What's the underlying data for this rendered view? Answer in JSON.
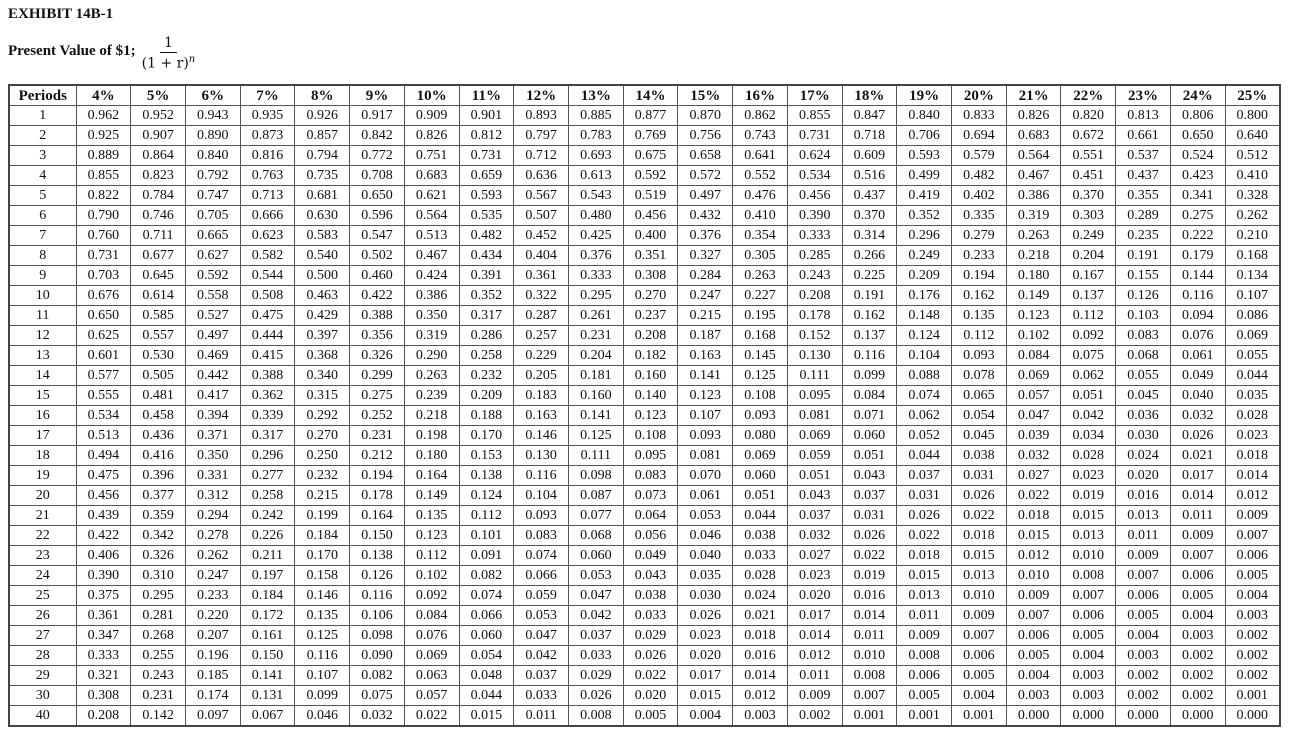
{
  "title": "EXHIBIT 14B-1",
  "subtitle": "Present Value of $1;",
  "formula": {
    "numerator": "1",
    "denominator": "(1 + r)",
    "exponent": "n"
  },
  "table": {
    "headers": [
      "Periods",
      "4%",
      "5%",
      "6%",
      "7%",
      "8%",
      "9%",
      "10%",
      "11%",
      "12%",
      "13%",
      "14%",
      "15%",
      "16%",
      "17%",
      "18%",
      "19%",
      "20%",
      "21%",
      "22%",
      "23%",
      "24%",
      "25%"
    ],
    "rows": [
      [
        "1",
        "0.962",
        "0.952",
        "0.943",
        "0.935",
        "0.926",
        "0.917",
        "0.909",
        "0.901",
        "0.893",
        "0.885",
        "0.877",
        "0.870",
        "0.862",
        "0.855",
        "0.847",
        "0.840",
        "0.833",
        "0.826",
        "0.820",
        "0.813",
        "0.806",
        "0.800"
      ],
      [
        "2",
        "0.925",
        "0.907",
        "0.890",
        "0.873",
        "0.857",
        "0.842",
        "0.826",
        "0.812",
        "0.797",
        "0.783",
        "0.769",
        "0.756",
        "0.743",
        "0.731",
        "0.718",
        "0.706",
        "0.694",
        "0.683",
        "0.672",
        "0.661",
        "0.650",
        "0.640"
      ],
      [
        "3",
        "0.889",
        "0.864",
        "0.840",
        "0.816",
        "0.794",
        "0.772",
        "0.751",
        "0.731",
        "0.712",
        "0.693",
        "0.675",
        "0.658",
        "0.641",
        "0.624",
        "0.609",
        "0.593",
        "0.579",
        "0.564",
        "0.551",
        "0.537",
        "0.524",
        "0.512"
      ],
      [
        "4",
        "0.855",
        "0.823",
        "0.792",
        "0.763",
        "0.735",
        "0.708",
        "0.683",
        "0.659",
        "0.636",
        "0.613",
        "0.592",
        "0.572",
        "0.552",
        "0.534",
        "0.516",
        "0.499",
        "0.482",
        "0.467",
        "0.451",
        "0.437",
        "0.423",
        "0.410"
      ],
      [
        "5",
        "0.822",
        "0.784",
        "0.747",
        "0.713",
        "0.681",
        "0.650",
        "0.621",
        "0.593",
        "0.567",
        "0.543",
        "0.519",
        "0.497",
        "0.476",
        "0.456",
        "0.437",
        "0.419",
        "0.402",
        "0.386",
        "0.370",
        "0.355",
        "0.341",
        "0.328"
      ],
      [
        "6",
        "0.790",
        "0.746",
        "0.705",
        "0.666",
        "0.630",
        "0.596",
        "0.564",
        "0.535",
        "0.507",
        "0.480",
        "0.456",
        "0.432",
        "0.410",
        "0.390",
        "0.370",
        "0.352",
        "0.335",
        "0.319",
        "0.303",
        "0.289",
        "0.275",
        "0.262"
      ],
      [
        "7",
        "0.760",
        "0.711",
        "0.665",
        "0.623",
        "0.583",
        "0.547",
        "0.513",
        "0.482",
        "0.452",
        "0.425",
        "0.400",
        "0.376",
        "0.354",
        "0.333",
        "0.314",
        "0.296",
        "0.279",
        "0.263",
        "0.249",
        "0.235",
        "0.222",
        "0.210"
      ],
      [
        "8",
        "0.731",
        "0.677",
        "0.627",
        "0.582",
        "0.540",
        "0.502",
        "0.467",
        "0.434",
        "0.404",
        "0.376",
        "0.351",
        "0.327",
        "0.305",
        "0.285",
        "0.266",
        "0.249",
        "0.233",
        "0.218",
        "0.204",
        "0.191",
        "0.179",
        "0.168"
      ],
      [
        "9",
        "0.703",
        "0.645",
        "0.592",
        "0.544",
        "0.500",
        "0.460",
        "0.424",
        "0.391",
        "0.361",
        "0.333",
        "0.308",
        "0.284",
        "0.263",
        "0.243",
        "0.225",
        "0.209",
        "0.194",
        "0.180",
        "0.167",
        "0.155",
        "0.144",
        "0.134"
      ],
      [
        "10",
        "0.676",
        "0.614",
        "0.558",
        "0.508",
        "0.463",
        "0.422",
        "0.386",
        "0.352",
        "0.322",
        "0.295",
        "0.270",
        "0.247",
        "0.227",
        "0.208",
        "0.191",
        "0.176",
        "0.162",
        "0.149",
        "0.137",
        "0.126",
        "0.116",
        "0.107"
      ],
      [
        "11",
        "0.650",
        "0.585",
        "0.527",
        "0.475",
        "0.429",
        "0.388",
        "0.350",
        "0.317",
        "0.287",
        "0.261",
        "0.237",
        "0.215",
        "0.195",
        "0.178",
        "0.162",
        "0.148",
        "0.135",
        "0.123",
        "0.112",
        "0.103",
        "0.094",
        "0.086"
      ],
      [
        "12",
        "0.625",
        "0.557",
        "0.497",
        "0.444",
        "0.397",
        "0.356",
        "0.319",
        "0.286",
        "0.257",
        "0.231",
        "0.208",
        "0.187",
        "0.168",
        "0.152",
        "0.137",
        "0.124",
        "0.112",
        "0.102",
        "0.092",
        "0.083",
        "0.076",
        "0.069"
      ],
      [
        "13",
        "0.601",
        "0.530",
        "0.469",
        "0.415",
        "0.368",
        "0.326",
        "0.290",
        "0.258",
        "0.229",
        "0.204",
        "0.182",
        "0.163",
        "0.145",
        "0.130",
        "0.116",
        "0.104",
        "0.093",
        "0.084",
        "0.075",
        "0.068",
        "0.061",
        "0.055"
      ],
      [
        "14",
        "0.577",
        "0.505",
        "0.442",
        "0.388",
        "0.340",
        "0.299",
        "0.263",
        "0.232",
        "0.205",
        "0.181",
        "0.160",
        "0.141",
        "0.125",
        "0.111",
        "0.099",
        "0.088",
        "0.078",
        "0.069",
        "0.062",
        "0.055",
        "0.049",
        "0.044"
      ],
      [
        "15",
        "0.555",
        "0.481",
        "0.417",
        "0.362",
        "0.315",
        "0.275",
        "0.239",
        "0.209",
        "0.183",
        "0.160",
        "0.140",
        "0.123",
        "0.108",
        "0.095",
        "0.084",
        "0.074",
        "0.065",
        "0.057",
        "0.051",
        "0.045",
        "0.040",
        "0.035"
      ],
      [
        "16",
        "0.534",
        "0.458",
        "0.394",
        "0.339",
        "0.292",
        "0.252",
        "0.218",
        "0.188",
        "0.163",
        "0.141",
        "0.123",
        "0.107",
        "0.093",
        "0.081",
        "0.071",
        "0.062",
        "0.054",
        "0.047",
        "0.042",
        "0.036",
        "0.032",
        "0.028"
      ],
      [
        "17",
        "0.513",
        "0.436",
        "0.371",
        "0.317",
        "0.270",
        "0.231",
        "0.198",
        "0.170",
        "0.146",
        "0.125",
        "0.108",
        "0.093",
        "0.080",
        "0.069",
        "0.060",
        "0.052",
        "0.045",
        "0.039",
        "0.034",
        "0.030",
        "0.026",
        "0.023"
      ],
      [
        "18",
        "0.494",
        "0.416",
        "0.350",
        "0.296",
        "0.250",
        "0.212",
        "0.180",
        "0.153",
        "0.130",
        "0.111",
        "0.095",
        "0.081",
        "0.069",
        "0.059",
        "0.051",
        "0.044",
        "0.038",
        "0.032",
        "0.028",
        "0.024",
        "0.021",
        "0.018"
      ],
      [
        "19",
        "0.475",
        "0.396",
        "0.331",
        "0.277",
        "0.232",
        "0.194",
        "0.164",
        "0.138",
        "0.116",
        "0.098",
        "0.083",
        "0.070",
        "0.060",
        "0.051",
        "0.043",
        "0.037",
        "0.031",
        "0.027",
        "0.023",
        "0.020",
        "0.017",
        "0.014"
      ],
      [
        "20",
        "0.456",
        "0.377",
        "0.312",
        "0.258",
        "0.215",
        "0.178",
        "0.149",
        "0.124",
        "0.104",
        "0.087",
        "0.073",
        "0.061",
        "0.051",
        "0.043",
        "0.037",
        "0.031",
        "0.026",
        "0.022",
        "0.019",
        "0.016",
        "0.014",
        "0.012"
      ],
      [
        "21",
        "0.439",
        "0.359",
        "0.294",
        "0.242",
        "0.199",
        "0.164",
        "0.135",
        "0.112",
        "0.093",
        "0.077",
        "0.064",
        "0.053",
        "0.044",
        "0.037",
        "0.031",
        "0.026",
        "0.022",
        "0.018",
        "0.015",
        "0.013",
        "0.011",
        "0.009"
      ],
      [
        "22",
        "0.422",
        "0.342",
        "0.278",
        "0.226",
        "0.184",
        "0.150",
        "0.123",
        "0.101",
        "0.083",
        "0.068",
        "0.056",
        "0.046",
        "0.038",
        "0.032",
        "0.026",
        "0.022",
        "0.018",
        "0.015",
        "0.013",
        "0.011",
        "0.009",
        "0.007"
      ],
      [
        "23",
        "0.406",
        "0.326",
        "0.262",
        "0.211",
        "0.170",
        "0.138",
        "0.112",
        "0.091",
        "0.074",
        "0.060",
        "0.049",
        "0.040",
        "0.033",
        "0.027",
        "0.022",
        "0.018",
        "0.015",
        "0.012",
        "0.010",
        "0.009",
        "0.007",
        "0.006"
      ],
      [
        "24",
        "0.390",
        "0.310",
        "0.247",
        "0.197",
        "0.158",
        "0.126",
        "0.102",
        "0.082",
        "0.066",
        "0.053",
        "0.043",
        "0.035",
        "0.028",
        "0.023",
        "0.019",
        "0.015",
        "0.013",
        "0.010",
        "0.008",
        "0.007",
        "0.006",
        "0.005"
      ],
      [
        "25",
        "0.375",
        "0.295",
        "0.233",
        "0.184",
        "0.146",
        "0.116",
        "0.092",
        "0.074",
        "0.059",
        "0.047",
        "0.038",
        "0.030",
        "0.024",
        "0.020",
        "0.016",
        "0.013",
        "0.010",
        "0.009",
        "0.007",
        "0.006",
        "0.005",
        "0.004"
      ],
      [
        "26",
        "0.361",
        "0.281",
        "0.220",
        "0.172",
        "0.135",
        "0.106",
        "0.084",
        "0.066",
        "0.053",
        "0.042",
        "0.033",
        "0.026",
        "0.021",
        "0.017",
        "0.014",
        "0.011",
        "0.009",
        "0.007",
        "0.006",
        "0.005",
        "0.004",
        "0.003"
      ],
      [
        "27",
        "0.347",
        "0.268",
        "0.207",
        "0.161",
        "0.125",
        "0.098",
        "0.076",
        "0.060",
        "0.047",
        "0.037",
        "0.029",
        "0.023",
        "0.018",
        "0.014",
        "0.011",
        "0.009",
        "0.007",
        "0.006",
        "0.005",
        "0.004",
        "0.003",
        "0.002"
      ],
      [
        "28",
        "0.333",
        "0.255",
        "0.196",
        "0.150",
        "0.116",
        "0.090",
        "0.069",
        "0.054",
        "0.042",
        "0.033",
        "0.026",
        "0.020",
        "0.016",
        "0.012",
        "0.010",
        "0.008",
        "0.006",
        "0.005",
        "0.004",
        "0.003",
        "0.002",
        "0.002"
      ],
      [
        "29",
        "0.321",
        "0.243",
        "0.185",
        "0.141",
        "0.107",
        "0.082",
        "0.063",
        "0.048",
        "0.037",
        "0.029",
        "0.022",
        "0.017",
        "0.014",
        "0.011",
        "0.008",
        "0.006",
        "0.005",
        "0.004",
        "0.003",
        "0.002",
        "0.002",
        "0.002"
      ],
      [
        "30",
        "0.308",
        "0.231",
        "0.174",
        "0.131",
        "0.099",
        "0.075",
        "0.057",
        "0.044",
        "0.033",
        "0.026",
        "0.020",
        "0.015",
        "0.012",
        "0.009",
        "0.007",
        "0.005",
        "0.004",
        "0.003",
        "0.003",
        "0.002",
        "0.002",
        "0.001"
      ],
      [
        "40",
        "0.208",
        "0.142",
        "0.097",
        "0.067",
        "0.046",
        "0.032",
        "0.022",
        "0.015",
        "0.011",
        "0.008",
        "0.005",
        "0.004",
        "0.003",
        "0.002",
        "0.001",
        "0.001",
        "0.001",
        "0.000",
        "0.000",
        "0.000",
        "0.000",
        "0.000"
      ]
    ]
  }
}
